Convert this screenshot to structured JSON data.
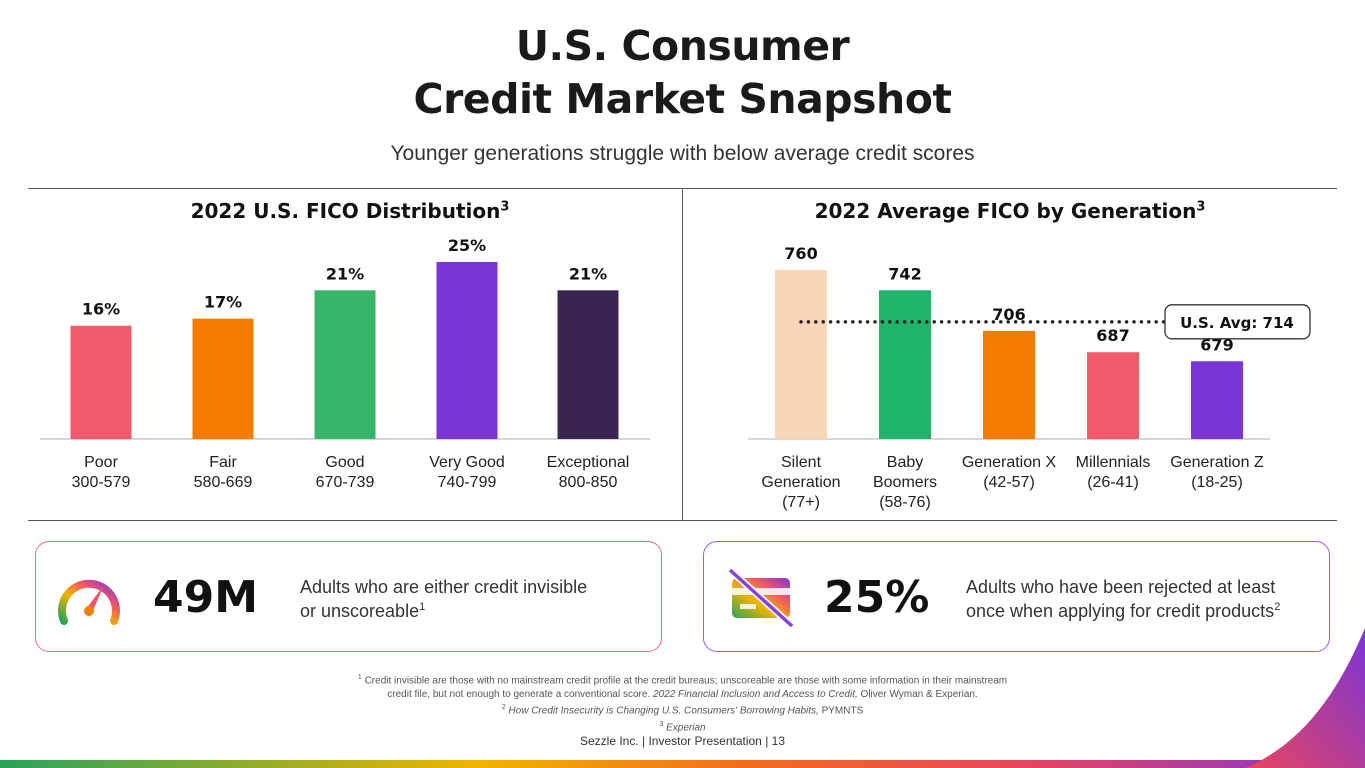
{
  "header": {
    "title_line1": "U.S. Consumer",
    "title_line2": "Credit Market Snapshot",
    "subtitle": "Younger generations struggle with below average credit scores"
  },
  "chart_data": [
    {
      "type": "bar",
      "title": "2022 U.S. FICO Distribution",
      "title_sup": "3",
      "categories": [
        "Poor",
        "Fair",
        "Good",
        "Very Good",
        "Exceptional"
      ],
      "category_ranges": [
        "300-579",
        "580-669",
        "670-739",
        "740-799",
        "800-850"
      ],
      "values": [
        16,
        17,
        21,
        25,
        21
      ],
      "value_labels": [
        "16%",
        "17%",
        "21%",
        "25%",
        "21%"
      ],
      "colors": [
        "#f05a6a",
        "#f57c00",
        "#39b56a",
        "#7b35d6",
        "#3a2551"
      ],
      "ylim": [
        0,
        25
      ]
    },
    {
      "type": "bar",
      "title": "2022 Average FICO by Generation",
      "title_sup": "3",
      "categories": [
        "Silent Generation (77+)",
        "Baby Boomers (58-76)",
        "Generation X (42-57)",
        "Millennials (26-41)",
        "Generation Z (18-25)"
      ],
      "category_lines": [
        [
          "Silent",
          "Generation",
          "(77+)"
        ],
        [
          "Baby",
          "Boomers",
          "(58-76)"
        ],
        [
          "Generation X",
          "(42-57)"
        ],
        [
          "Millennials",
          "(26-41)"
        ],
        [
          "Generation Z",
          "(18-25)"
        ]
      ],
      "values": [
        760,
        742,
        706,
        687,
        679
      ],
      "value_labels": [
        "760",
        "742",
        "706",
        "687",
        "679"
      ],
      "colors": [
        "#f9d6b8",
        "#1fb36b",
        "#f57c00",
        "#f05a6a",
        "#7b35d6"
      ],
      "reference_line": {
        "value": 714,
        "label": "U.S. Avg: 714"
      },
      "ylim": [
        610,
        760
      ]
    }
  ],
  "cards": [
    {
      "value": "49M",
      "description": "Adults who are either credit invisible or unscoreable",
      "desc_line1": "Adults who are either credit invisible",
      "desc_line2": "or unscoreable",
      "desc_sup": "1",
      "icon": "speedometer-icon",
      "border_color": "#ef6b7a"
    },
    {
      "value": "25%",
      "description": "Adults who have been rejected at least once when applying for credit products",
      "desc_line1": "Adults who have been rejected at least",
      "desc_line2": "once when applying for credit products",
      "desc_sup": "2",
      "icon": "credit-card-blocked-icon",
      "border_color": "#9a5ce0"
    }
  ],
  "footnotes": {
    "fn1_sup": "1",
    "fn1_line1": "Credit invisible are those with no mainstream credit profile at the credit bureaus; unscoreable are those with some information in their mainstream",
    "fn1_line2a": "credit file, but not enough to generate a conventional score.",
    "fn1_line2b": "2022 Financial Inclusion and Access to Credit,",
    "fn1_line2c": "Oliver Wyman & Experian.",
    "fn2_sup": "2",
    "fn2_title": "How Credit Insecurity is Changing U.S. Consumers' Borrowing Habits,",
    "fn2_source": "PYMNTS",
    "fn3_sup": "3",
    "fn3_text": "Experian"
  },
  "footer": "Sezzle Inc. | Investor Presentation | 13"
}
